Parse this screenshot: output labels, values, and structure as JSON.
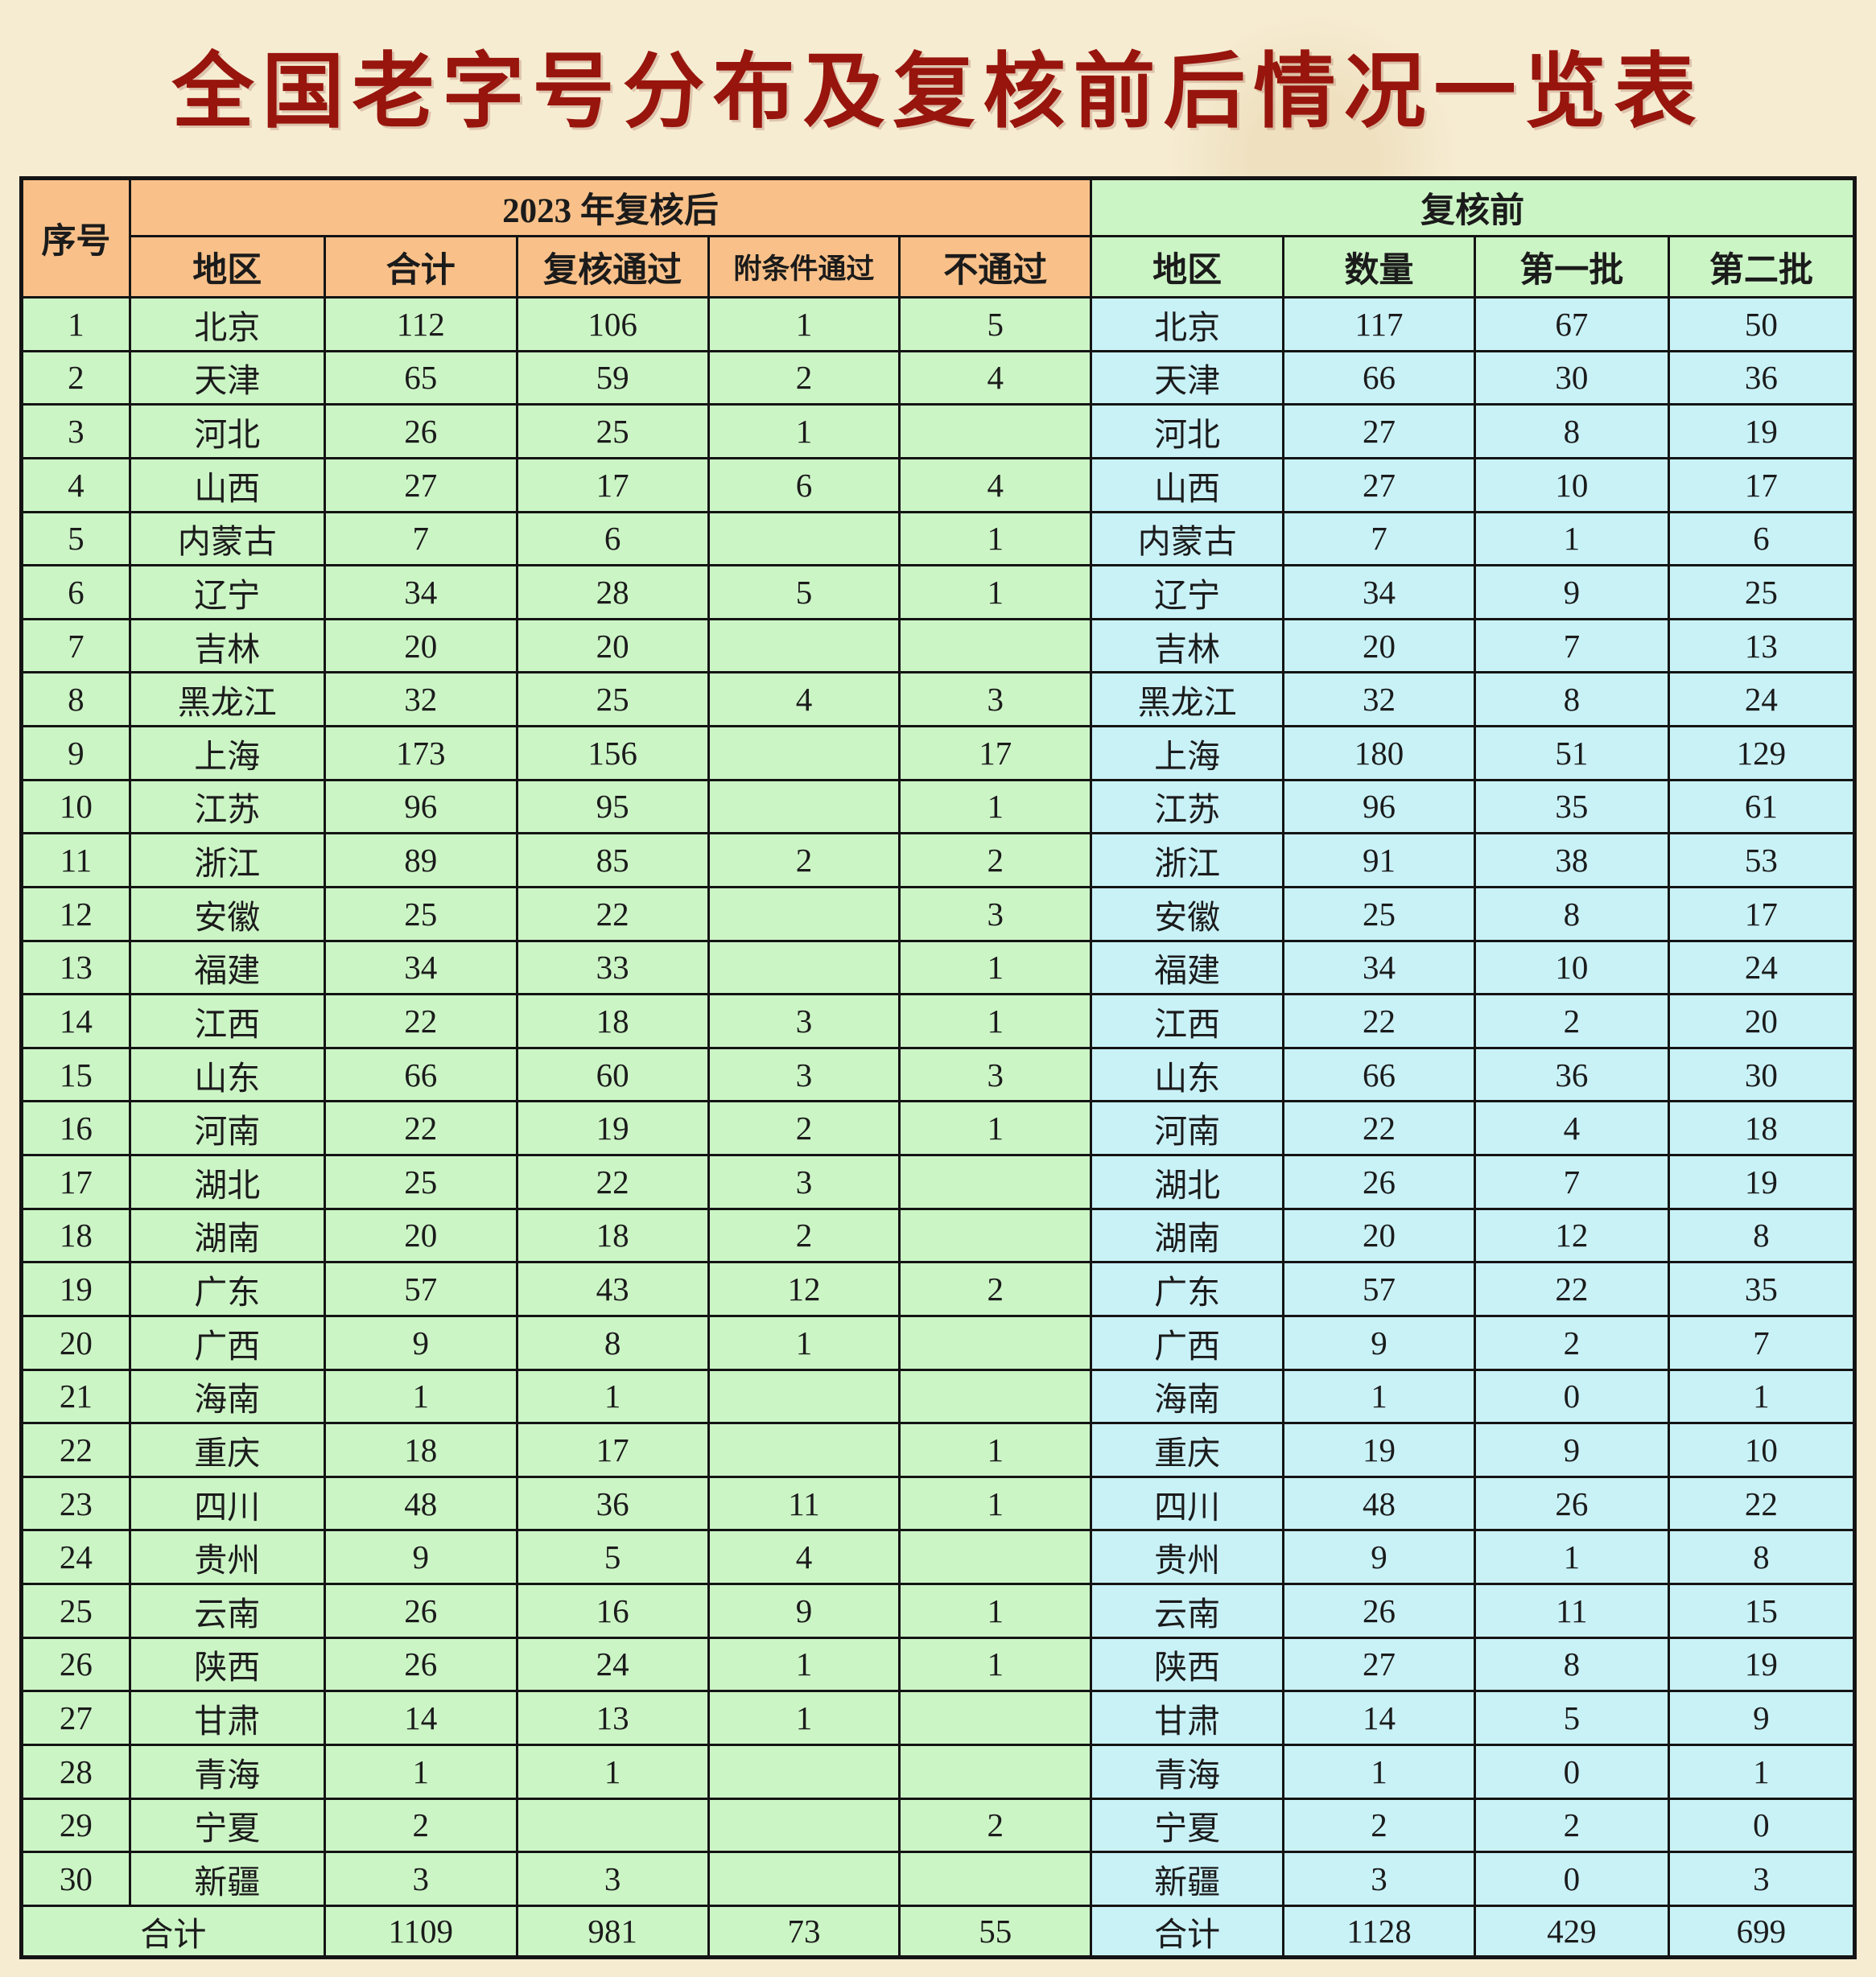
{
  "title": "全国老字号分布及复核前后情况一览表",
  "colors": {
    "page_background": "#f6ecd2",
    "title_red": "#97150d",
    "header_orange": "#f9c189",
    "body_green": "#ccf5c6",
    "body_cyan": "#c9f2f7",
    "grid_line": "#141414"
  },
  "table": {
    "headers": {
      "seq": "序号",
      "after_group": "2023 年复核后",
      "before_group": "复核前",
      "after_cols": [
        "地区",
        "合计",
        "复核通过",
        "附条件通过",
        "不通过"
      ],
      "before_cols": [
        "地区",
        "数量",
        "第一批",
        "第二批"
      ]
    },
    "rows": [
      {
        "seq": "1",
        "region": "北京",
        "total": "112",
        "passed": "106",
        "conditional": "1",
        "failed": "5",
        "pre_region": "北京",
        "pre_total": "117",
        "batch1": "67",
        "batch2": "50"
      },
      {
        "seq": "2",
        "region": "天津",
        "total": "65",
        "passed": "59",
        "conditional": "2",
        "failed": "4",
        "pre_region": "天津",
        "pre_total": "66",
        "batch1": "30",
        "batch2": "36"
      },
      {
        "seq": "3",
        "region": "河北",
        "total": "26",
        "passed": "25",
        "conditional": "1",
        "failed": "",
        "pre_region": "河北",
        "pre_total": "27",
        "batch1": "8",
        "batch2": "19"
      },
      {
        "seq": "4",
        "region": "山西",
        "total": "27",
        "passed": "17",
        "conditional": "6",
        "failed": "4",
        "pre_region": "山西",
        "pre_total": "27",
        "batch1": "10",
        "batch2": "17"
      },
      {
        "seq": "5",
        "region": "内蒙古",
        "total": "7",
        "passed": "6",
        "conditional": "",
        "failed": "1",
        "pre_region": "内蒙古",
        "pre_total": "7",
        "batch1": "1",
        "batch2": "6"
      },
      {
        "seq": "6",
        "region": "辽宁",
        "total": "34",
        "passed": "28",
        "conditional": "5",
        "failed": "1",
        "pre_region": "辽宁",
        "pre_total": "34",
        "batch1": "9",
        "batch2": "25"
      },
      {
        "seq": "7",
        "region": "吉林",
        "total": "20",
        "passed": "20",
        "conditional": "",
        "failed": "",
        "pre_region": "吉林",
        "pre_total": "20",
        "batch1": "7",
        "batch2": "13"
      },
      {
        "seq": "8",
        "region": "黑龙江",
        "total": "32",
        "passed": "25",
        "conditional": "4",
        "failed": "3",
        "pre_region": "黑龙江",
        "pre_total": "32",
        "batch1": "8",
        "batch2": "24"
      },
      {
        "seq": "9",
        "region": "上海",
        "total": "173",
        "passed": "156",
        "conditional": "",
        "failed": "17",
        "pre_region": "上海",
        "pre_total": "180",
        "batch1": "51",
        "batch2": "129"
      },
      {
        "seq": "10",
        "region": "江苏",
        "total": "96",
        "passed": "95",
        "conditional": "",
        "failed": "1",
        "pre_region": "江苏",
        "pre_total": "96",
        "batch1": "35",
        "batch2": "61"
      },
      {
        "seq": "11",
        "region": "浙江",
        "total": "89",
        "passed": "85",
        "conditional": "2",
        "failed": "2",
        "pre_region": "浙江",
        "pre_total": "91",
        "batch1": "38",
        "batch2": "53"
      },
      {
        "seq": "12",
        "region": "安徽",
        "total": "25",
        "passed": "22",
        "conditional": "",
        "failed": "3",
        "pre_region": "安徽",
        "pre_total": "25",
        "batch1": "8",
        "batch2": "17"
      },
      {
        "seq": "13",
        "region": "福建",
        "total": "34",
        "passed": "33",
        "conditional": "",
        "failed": "1",
        "pre_region": "福建",
        "pre_total": "34",
        "batch1": "10",
        "batch2": "24"
      },
      {
        "seq": "14",
        "region": "江西",
        "total": "22",
        "passed": "18",
        "conditional": "3",
        "failed": "1",
        "pre_region": "江西",
        "pre_total": "22",
        "batch1": "2",
        "batch2": "20"
      },
      {
        "seq": "15",
        "region": "山东",
        "total": "66",
        "passed": "60",
        "conditional": "3",
        "failed": "3",
        "pre_region": "山东",
        "pre_total": "66",
        "batch1": "36",
        "batch2": "30"
      },
      {
        "seq": "16",
        "region": "河南",
        "total": "22",
        "passed": "19",
        "conditional": "2",
        "failed": "1",
        "pre_region": "河南",
        "pre_total": "22",
        "batch1": "4",
        "batch2": "18"
      },
      {
        "seq": "17",
        "region": "湖北",
        "total": "25",
        "passed": "22",
        "conditional": "3",
        "failed": "",
        "pre_region": "湖北",
        "pre_total": "26",
        "batch1": "7",
        "batch2": "19"
      },
      {
        "seq": "18",
        "region": "湖南",
        "total": "20",
        "passed": "18",
        "conditional": "2",
        "failed": "",
        "pre_region": "湖南",
        "pre_total": "20",
        "batch1": "12",
        "batch2": "8"
      },
      {
        "seq": "19",
        "region": "广东",
        "total": "57",
        "passed": "43",
        "conditional": "12",
        "failed": "2",
        "pre_region": "广东",
        "pre_total": "57",
        "batch1": "22",
        "batch2": "35"
      },
      {
        "seq": "20",
        "region": "广西",
        "total": "9",
        "passed": "8",
        "conditional": "1",
        "failed": "",
        "pre_region": "广西",
        "pre_total": "9",
        "batch1": "2",
        "batch2": "7"
      },
      {
        "seq": "21",
        "region": "海南",
        "total": "1",
        "passed": "1",
        "conditional": "",
        "failed": "",
        "pre_region": "海南",
        "pre_total": "1",
        "batch1": "0",
        "batch2": "1"
      },
      {
        "seq": "22",
        "region": "重庆",
        "total": "18",
        "passed": "17",
        "conditional": "",
        "failed": "1",
        "pre_region": "重庆",
        "pre_total": "19",
        "batch1": "9",
        "batch2": "10"
      },
      {
        "seq": "23",
        "region": "四川",
        "total": "48",
        "passed": "36",
        "conditional": "11",
        "failed": "1",
        "pre_region": "四川",
        "pre_total": "48",
        "batch1": "26",
        "batch2": "22"
      },
      {
        "seq": "24",
        "region": "贵州",
        "total": "9",
        "passed": "5",
        "conditional": "4",
        "failed": "",
        "pre_region": "贵州",
        "pre_total": "9",
        "batch1": "1",
        "batch2": "8"
      },
      {
        "seq": "25",
        "region": "云南",
        "total": "26",
        "passed": "16",
        "conditional": "9",
        "failed": "1",
        "pre_region": "云南",
        "pre_total": "26",
        "batch1": "11",
        "batch2": "15"
      },
      {
        "seq": "26",
        "region": "陕西",
        "total": "26",
        "passed": "24",
        "conditional": "1",
        "failed": "1",
        "pre_region": "陕西",
        "pre_total": "27",
        "batch1": "8",
        "batch2": "19"
      },
      {
        "seq": "27",
        "region": "甘肃",
        "total": "14",
        "passed": "13",
        "conditional": "1",
        "failed": "",
        "pre_region": "甘肃",
        "pre_total": "14",
        "batch1": "5",
        "batch2": "9"
      },
      {
        "seq": "28",
        "region": "青海",
        "total": "1",
        "passed": "1",
        "conditional": "",
        "failed": "",
        "pre_region": "青海",
        "pre_total": "1",
        "batch1": "0",
        "batch2": "1"
      },
      {
        "seq": "29",
        "region": "宁夏",
        "total": "2",
        "passed": "",
        "conditional": "",
        "failed": "2",
        "pre_region": "宁夏",
        "pre_total": "2",
        "batch1": "2",
        "batch2": "0"
      },
      {
        "seq": "30",
        "region": "新疆",
        "total": "3",
        "passed": "3",
        "conditional": "",
        "failed": "",
        "pre_region": "新疆",
        "pre_total": "3",
        "batch1": "0",
        "batch2": "3"
      }
    ],
    "total_row": {
      "label": "合计",
      "total": "1109",
      "passed": "981",
      "conditional": "73",
      "failed": "55",
      "pre_label": "合计",
      "pre_total": "1128",
      "batch1": "429",
      "batch2": "699"
    }
  }
}
